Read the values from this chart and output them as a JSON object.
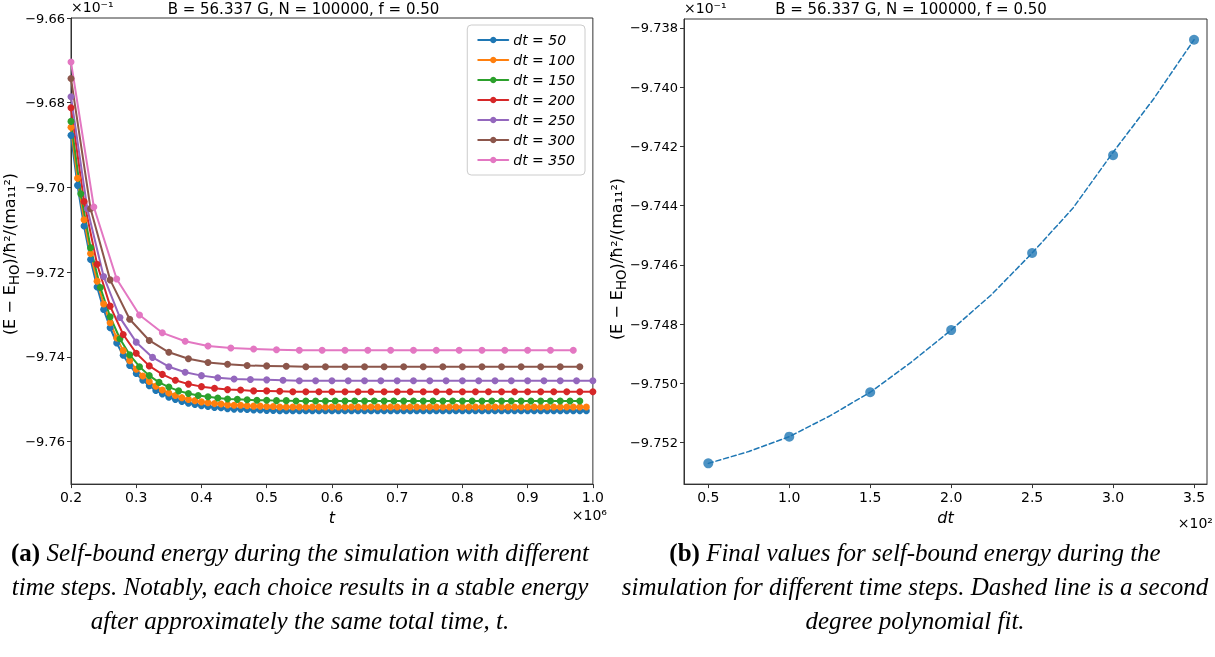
{
  "chart_data": [
    {
      "type": "line",
      "title": "B = 56.337 G, N = 100000, f = 0.50",
      "xlabel": "t",
      "ylabel": "(E − E$_{HO}$)/ħ²/(ma₁₁²)",
      "annotations": [
        "×10⁻¹",
        "×10⁶",
        "(a) Self-bound energy during the simulation with different time steps. Notably, each choice results in a stable energy after approximately the same total time, t."
      ],
      "x": [
        0.2,
        0.21,
        0.22,
        0.23,
        0.24,
        0.25,
        0.26,
        0.27,
        0.28,
        0.29,
        0.3,
        0.31,
        0.32,
        0.33,
        0.34,
        0.35,
        0.36,
        0.37,
        0.38,
        0.39,
        0.4,
        0.41,
        0.42,
        0.43,
        0.44,
        0.45,
        0.46,
        0.47,
        0.48,
        0.49,
        0.5,
        0.51,
        0.52,
        0.53,
        0.54,
        0.55,
        0.56,
        0.57,
        0.58,
        0.59,
        0.6,
        0.61,
        0.62,
        0.63,
        0.64,
        0.65,
        0.66,
        0.67,
        0.68,
        0.69,
        0.7,
        0.71,
        0.72,
        0.73,
        0.74,
        0.75,
        0.76,
        0.77,
        0.78,
        0.79,
        0.8,
        0.81,
        0.82,
        0.83,
        0.84,
        0.85,
        0.86,
        0.87,
        0.88,
        0.89,
        0.9,
        0.91,
        0.92,
        0.93,
        0.94,
        0.95,
        0.96,
        0.97,
        0.98,
        0.99
      ],
      "series": [
        {
          "name": "dt = 50",
          "color": "#1f77b4",
          "values": [
            -9.6877,
            -9.6995,
            -9.7091,
            -9.717,
            -9.7235,
            -9.7288,
            -9.7331,
            -9.7367,
            -9.7396,
            -9.742,
            -9.7439,
            -9.7455,
            -9.7468,
            -9.7479,
            -9.7487,
            -9.7495,
            -9.75,
            -9.7505,
            -9.7509,
            -9.7512,
            -9.7515,
            -9.7517,
            -9.7519,
            -9.752,
            -9.7522,
            -9.7523,
            -9.7523,
            -9.7524,
            -9.7525,
            -9.7525,
            -9.7526,
            -9.7526,
            -9.7527,
            -9.7527,
            -9.7527,
            -9.7527,
            -9.7527,
            -9.7527,
            -9.7527,
            -9.7527,
            -9.7527,
            -9.7527,
            -9.7527,
            -9.7527,
            -9.7527,
            -9.7527,
            -9.7527,
            -9.7527,
            -9.7527,
            -9.7527,
            -9.7527,
            -9.7527,
            -9.7527,
            -9.7527,
            -9.7527,
            -9.7527,
            -9.7527,
            -9.7527,
            -9.7527,
            -9.7527,
            -9.7527,
            -9.7527,
            -9.7527,
            -9.7527,
            -9.7527,
            -9.7527,
            -9.7527,
            -9.7527,
            -9.7527,
            -9.7527,
            -9.7527,
            -9.7527,
            -9.7527,
            -9.7527,
            -9.7527,
            -9.7527,
            -9.7527,
            -9.7527,
            -9.7527,
            -9.7527
          ]
        },
        {
          "name": "dt = 100",
          "color": "#ff7f0e",
          "values": [
            -9.6858,
            -9.6978,
            -9.7076,
            -9.7156,
            -9.7221,
            -9.7275,
            -9.7319,
            -9.7355,
            -9.7385,
            -9.7409,
            -9.7429,
            -9.7445,
            -9.7458,
            -9.7469,
            -9.7478,
            -9.7485,
            -9.7491,
            -9.7496,
            -9.75,
            -9.7503,
            -9.7506,
            -9.7508,
            -9.751,
            -9.7511,
            -9.7513,
            -9.7514,
            -9.7514,
            -9.7515,
            -9.7516,
            -9.7516,
            -9.7517,
            -9.7517,
            -9.7518,
            -9.7518,
            -9.7518,
            -9.7518,
            -9.7518,
            -9.7518,
            -9.7518,
            -9.7518,
            -9.7518,
            -9.7518,
            -9.7518,
            -9.7518,
            -9.7518,
            -9.7518,
            -9.7518,
            -9.7518,
            -9.7518,
            -9.7518,
            -9.7518,
            -9.7518,
            -9.7518,
            -9.7518,
            -9.7518,
            -9.7518,
            -9.7518,
            -9.7518,
            -9.7518,
            -9.7518,
            -9.7518,
            -9.7518,
            -9.7518,
            -9.7518,
            -9.7518,
            -9.7518,
            -9.7518,
            -9.7518,
            -9.7518,
            -9.7518,
            -9.7518,
            -9.7518,
            -9.7518,
            -9.7518,
            -9.7518,
            -9.7518,
            -9.7518,
            -9.7518,
            -9.7518,
            -9.7518
          ]
        },
        {
          "name": "dt = 150",
          "color": "#2ca02c",
          "x": [
            0.2,
            0.215,
            0.23,
            0.245,
            0.26,
            0.275,
            0.29,
            0.305,
            0.32,
            0.335,
            0.35,
            0.365,
            0.38,
            0.395,
            0.41,
            0.425,
            0.44,
            0.455,
            0.47,
            0.485,
            0.5,
            0.515,
            0.53,
            0.545,
            0.56,
            0.575,
            0.59,
            0.605,
            0.62,
            0.635,
            0.65,
            0.665,
            0.68,
            0.695,
            0.71,
            0.725,
            0.74,
            0.755,
            0.77,
            0.785,
            0.8,
            0.815,
            0.83,
            0.845,
            0.86,
            0.875,
            0.89,
            0.905,
            0.92,
            0.935,
            0.95,
            0.965,
            0.98
          ],
          "values": [
            -9.6844,
            -9.7015,
            -9.7142,
            -9.7236,
            -9.7305,
            -9.7357,
            -9.7395,
            -9.7423,
            -9.7444,
            -9.746,
            -9.7471,
            -9.748,
            -9.7486,
            -9.7491,
            -9.7494,
            -9.7497,
            -9.7499,
            -9.75,
            -9.7501,
            -9.7502,
            -9.7502,
            -9.7503,
            -9.7503,
            -9.7504,
            -9.7504,
            -9.7504,
            -9.7504,
            -9.7504,
            -9.7504,
            -9.7504,
            -9.7504,
            -9.7504,
            -9.7504,
            -9.7504,
            -9.7504,
            -9.7504,
            -9.7504,
            -9.7504,
            -9.7504,
            -9.7504,
            -9.7504,
            -9.7504,
            -9.7504,
            -9.7504,
            -9.7504,
            -9.7504,
            -9.7504,
            -9.7504,
            -9.7504,
            -9.7504,
            -9.7504,
            -9.7504,
            -9.7504
          ]
        },
        {
          "name": "dt = 200",
          "color": "#d62728",
          "x": [
            0.2,
            0.22,
            0.24,
            0.26,
            0.28,
            0.3,
            0.32,
            0.34,
            0.36,
            0.38,
            0.4,
            0.42,
            0.44,
            0.46,
            0.48,
            0.5,
            0.52,
            0.54,
            0.56,
            0.58,
            0.6,
            0.62,
            0.64,
            0.66,
            0.68,
            0.7,
            0.72,
            0.74,
            0.76,
            0.78,
            0.8,
            0.82,
            0.84,
            0.86,
            0.88,
            0.9,
            0.92,
            0.94,
            0.96,
            0.98,
            1.0
          ],
          "values": [
            -9.6812,
            -9.7033,
            -9.7181,
            -9.728,
            -9.7347,
            -9.7391,
            -9.7421,
            -9.7441,
            -9.7455,
            -9.7464,
            -9.747,
            -9.7474,
            -9.7477,
            -9.7478,
            -9.748,
            -9.748,
            -9.7481,
            -9.7482,
            -9.7482,
            -9.7482,
            -9.7482,
            -9.7482,
            -9.7482,
            -9.7482,
            -9.7482,
            -9.7482,
            -9.7482,
            -9.7482,
            -9.7482,
            -9.7482,
            -9.7482,
            -9.7482,
            -9.7482,
            -9.7482,
            -9.7482,
            -9.7482,
            -9.7482,
            -9.7482,
            -9.7482,
            -9.7482,
            -9.7482
          ]
        },
        {
          "name": "dt = 250",
          "color": "#9467bd",
          "x": [
            0.2,
            0.225,
            0.25,
            0.275,
            0.3,
            0.325,
            0.35,
            0.375,
            0.4,
            0.425,
            0.45,
            0.475,
            0.5,
            0.525,
            0.55,
            0.575,
            0.6,
            0.625,
            0.65,
            0.675,
            0.7,
            0.725,
            0.75,
            0.775,
            0.8,
            0.825,
            0.85,
            0.875,
            0.9,
            0.925,
            0.95,
            0.975,
            1.0
          ],
          "values": [
            -9.6786,
            -9.705,
            -9.721,
            -9.7307,
            -9.7365,
            -9.7401,
            -9.7423,
            -9.7436,
            -9.7444,
            -9.7449,
            -9.7452,
            -9.7453,
            -9.7454,
            -9.7455,
            -9.7456,
            -9.7456,
            -9.7456,
            -9.7456,
            -9.7456,
            -9.7456,
            -9.7456,
            -9.7456,
            -9.7456,
            -9.7456,
            -9.7456,
            -9.7456,
            -9.7456,
            -9.7456,
            -9.7456,
            -9.7456,
            -9.7456,
            -9.7456,
            -9.7456
          ]
        },
        {
          "name": "dt = 300",
          "color": "#8c564b",
          "x": [
            0.2,
            0.23,
            0.26,
            0.29,
            0.32,
            0.35,
            0.38,
            0.41,
            0.44,
            0.47,
            0.5,
            0.53,
            0.56,
            0.59,
            0.62,
            0.65,
            0.68,
            0.71,
            0.74,
            0.77,
            0.8,
            0.83,
            0.86,
            0.89,
            0.92,
            0.95,
            0.98
          ],
          "values": [
            -9.6743,
            -9.705,
            -9.7218,
            -9.7311,
            -9.7361,
            -9.7389,
            -9.7404,
            -9.7413,
            -9.7417,
            -9.742,
            -9.7421,
            -9.7422,
            -9.7423,
            -9.7423,
            -9.7423,
            -9.7423,
            -9.7423,
            -9.7423,
            -9.7423,
            -9.7423,
            -9.7423,
            -9.7423,
            -9.7423,
            -9.7423,
            -9.7423,
            -9.7423,
            -9.7423
          ]
        },
        {
          "name": "dt = 350",
          "color": "#e377c2",
          "x": [
            0.2,
            0.235,
            0.27,
            0.305,
            0.34,
            0.375,
            0.41,
            0.445,
            0.48,
            0.515,
            0.55,
            0.585,
            0.62,
            0.655,
            0.69,
            0.725,
            0.76,
            0.795,
            0.83,
            0.865,
            0.9,
            0.935,
            0.97
          ],
          "values": [
            -9.6704,
            -9.7046,
            -9.7216,
            -9.7301,
            -9.7343,
            -9.7363,
            -9.7374,
            -9.7379,
            -9.7381,
            -9.7383,
            -9.7384,
            -9.7384,
            -9.7384,
            -9.7384,
            -9.7384,
            -9.7384,
            -9.7384,
            -9.7384,
            -9.7384,
            -9.7384,
            -9.7384,
            -9.7384,
            -9.7384
          ]
        }
      ],
      "xlim": [
        0.2,
        1.0
      ],
      "xticks": [
        {
          "value": 0.2,
          "label": "0.2"
        },
        0.3,
        0.4,
        0.5,
        0.6,
        0.7,
        0.8,
        0.9,
        {
          "value": 1,
          "label": "1.0"
        }
      ],
      "ylim": [
        -9.77,
        -9.66
      ],
      "yticks": [
        {
          "value": -9.66,
          "label": "−9.66"
        },
        {
          "value": -9.68,
          "label": "−9.68"
        },
        {
          "value": -9.7,
          "label": "−9.70"
        },
        {
          "value": -9.72,
          "label": "−9.72"
        },
        {
          "value": -9.74,
          "label": "−9.74"
        },
        {
          "value": -9.76,
          "label": "−9.76"
        }
      ],
      "marker": "circle",
      "line_style": "solid",
      "legend": "top right"
    },
    {
      "type": "scatter",
      "title": "B = 56.337 G, N = 100000, f = 0.50",
      "xlabel": "dt",
      "ylabel": "(E − E$_{HO}$)/ħ²/(ma₁₁²)",
      "annotations": [
        "×10⁻¹",
        "×10²",
        "(b) Final values for self-bound energy during the simulation for different time steps. Dashed line is a second degree polynomial fit."
      ],
      "x": [
        0.5,
        1.0,
        1.5,
        2.0,
        2.5,
        3.0,
        3.5
      ],
      "series": [
        {
          "color": "#1f77b4",
          "values": [
            -9.7527,
            -9.7518,
            -9.7503,
            -9.7482,
            -9.7456,
            -9.7423,
            -9.7384
          ],
          "marker": "circle"
        },
        {
          "type": "line",
          "color": "#1f77b4",
          "line_style": "dashed",
          "marker": "none",
          "x": [
            0.5,
            0.75,
            1.0,
            1.25,
            1.5,
            1.75,
            2.0,
            2.25,
            2.5,
            2.75,
            3.0,
            3.25,
            3.5
          ],
          "values": [
            -9.7527,
            -9.7523,
            -9.7518,
            -9.7511,
            -9.7503,
            -9.7493,
            -9.7482,
            -9.747,
            -9.7456,
            -9.7441,
            -9.7422,
            -9.7404,
            -9.7384
          ]
        }
      ],
      "xlim": [
        0.35,
        3.58
      ],
      "xticks": [
        0.5,
        {
          "value": 1,
          "label": "1.0"
        },
        1.5,
        {
          "value": 2,
          "label": "2.0"
        },
        2.5,
        {
          "value": 3,
          "label": "3.0"
        },
        3.5
      ],
      "ylim": [
        -9.7534,
        -9.7377
      ],
      "yticks": [
        {
          "value": -9.738,
          "label": "−9.738"
        },
        {
          "value": -9.74,
          "label": "−9.740"
        },
        {
          "value": -9.742,
          "label": "−9.742"
        },
        {
          "value": -9.744,
          "label": "−9.744"
        },
        {
          "value": -9.746,
          "label": "−9.746"
        },
        {
          "value": -9.748,
          "label": "−9.748"
        },
        {
          "value": -9.75,
          "label": "−9.750"
        },
        {
          "value": -9.752,
          "label": "−9.752"
        }
      ]
    }
  ]
}
